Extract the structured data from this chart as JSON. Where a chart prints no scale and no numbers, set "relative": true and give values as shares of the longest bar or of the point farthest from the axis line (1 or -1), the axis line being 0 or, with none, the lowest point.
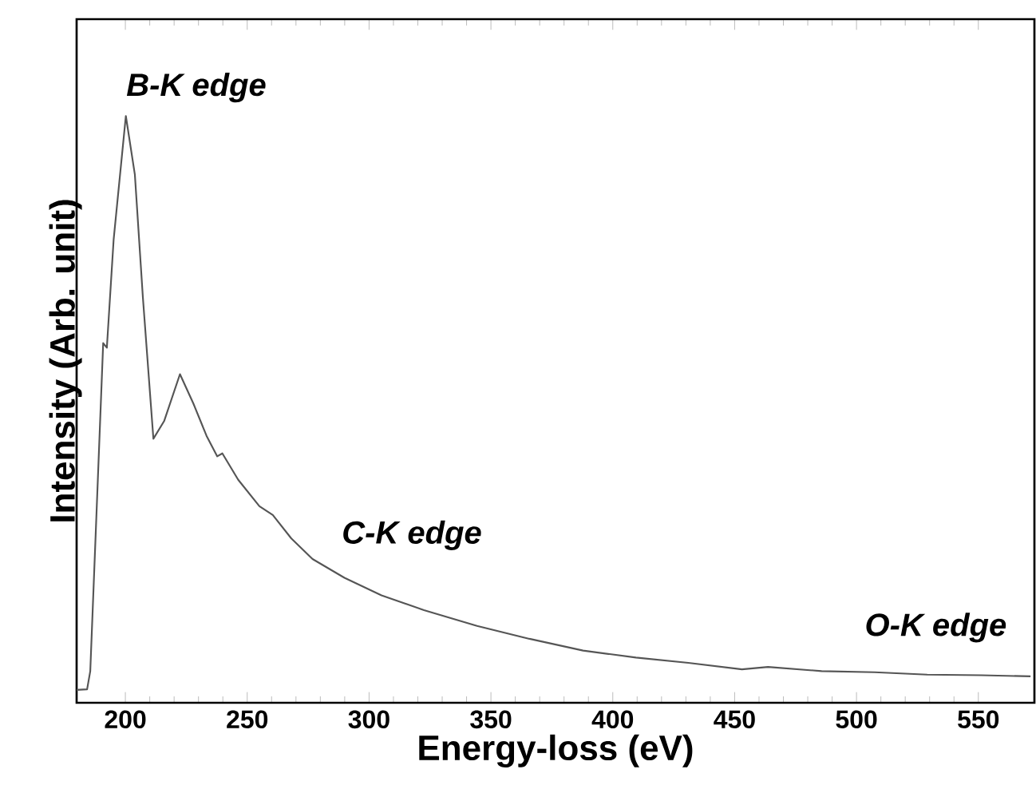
{
  "chart_data": {
    "type": "line",
    "xlabel": "Energy-loss (eV)",
    "ylabel": "Intensity (Arb. unit)",
    "relative": true,
    "xlim": [
      180,
      573
    ],
    "xticks": [
      200,
      250,
      300,
      350,
      400,
      450,
      500,
      550
    ],
    "annotations": [
      "B-K edge",
      "C-K edge",
      "O-K edge"
    ],
    "marker": "none",
    "line_style": "solid",
    "series": [
      {
        "color": "#555555",
        "x": [
          180,
          184.3,
          185.6,
          188.7,
          190.9,
          192.4,
          195.2,
          200.2,
          203.9,
          207.2,
          211.5,
          215.9,
          222.4,
          227.9,
          233.3,
          237.7,
          239.8,
          246.3,
          255,
          260.5,
          268.1,
          276.8,
          289.9,
          305.1,
          322.5,
          344.3,
          365.8,
          387.8,
          409.5,
          431,
          453,
          463.7,
          485.7,
          507.4,
          529,
          551,
          571.4
        ],
        "values": [
          0.022,
          0.023,
          0.054,
          0.38,
          0.613,
          0.605,
          0.79,
          1.0,
          0.9,
          0.69,
          0.45,
          0.48,
          0.56,
          0.51,
          0.455,
          0.42,
          0.425,
          0.38,
          0.335,
          0.32,
          0.28,
          0.245,
          0.213,
          0.183,
          0.158,
          0.131,
          0.109,
          0.089,
          0.077,
          0.068,
          0.057,
          0.061,
          0.054,
          0.052,
          0.048,
          0.047,
          0.045
        ]
      }
    ]
  }
}
